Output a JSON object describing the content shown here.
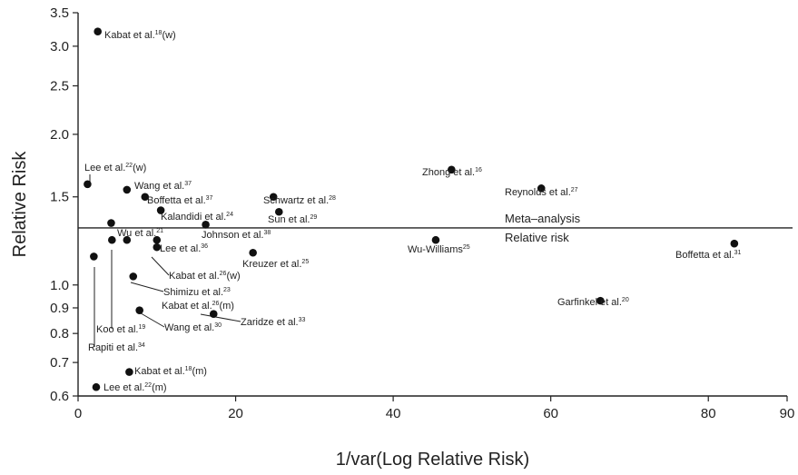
{
  "chart_data": {
    "type": "scatter",
    "title": "",
    "xlabel": "1/var(Log Relative Risk)",
    "ylabel": "Relative Risk",
    "xlim": [
      0,
      90
    ],
    "ylim": [
      0.6,
      3.5
    ],
    "yscale": "log",
    "grid": false,
    "x_ticks": [
      0,
      20,
      40,
      60,
      80,
      90
    ],
    "x_tick_labels": [
      "0",
      "20",
      "40",
      "60",
      "80",
      "90"
    ],
    "y_ticks": [
      0.6,
      0.7,
      0.8,
      0.9,
      1.0,
      1.5,
      2.0,
      2.5,
      3.0,
      3.5
    ],
    "y_tick_labels": [
      "0.6",
      "0.7",
      "0.8",
      "0.9",
      "1.0",
      "1.5",
      "2.0",
      "2.5",
      "3.0",
      "3.5"
    ],
    "reference_line": {
      "y": 1.3,
      "label_above": "Meta–analysis",
      "label_below": "Relative risk"
    },
    "points": [
      {
        "x": 2.5,
        "y": 3.21,
        "name": "Kabat et al.",
        "ref": "18",
        "suffix": "(w)"
      },
      {
        "x": 1.2,
        "y": 1.59,
        "name": "Lee et al.",
        "ref": "22",
        "suffix": "(w)"
      },
      {
        "x": 6.2,
        "y": 1.55,
        "name": "Wang et al.",
        "ref": "37",
        "suffix": ""
      },
      {
        "x": 8.5,
        "y": 1.5,
        "name": "Boffetta et al.",
        "ref": "37",
        "suffix": ""
      },
      {
        "x": 10.5,
        "y": 1.41,
        "name": "Kalandidi et al.",
        "ref": "24",
        "suffix": ""
      },
      {
        "x": 4.2,
        "y": 1.33,
        "name": "Wu et al.",
        "ref": "21",
        "suffix": ""
      },
      {
        "x": 16.2,
        "y": 1.32,
        "name": "Johnson et al.",
        "ref": "38",
        "suffix": ""
      },
      {
        "x": 24.8,
        "y": 1.5,
        "name": "Schwartz et al.",
        "ref": "28",
        "suffix": ""
      },
      {
        "x": 25.5,
        "y": 1.4,
        "name": "Sun et al.",
        "ref": "29",
        "suffix": ""
      },
      {
        "x": 47.4,
        "y": 1.7,
        "name": "Zhong et al.",
        "ref": "16",
        "suffix": ""
      },
      {
        "x": 58.8,
        "y": 1.56,
        "name": "Reynolds et al.",
        "ref": "27",
        "suffix": ""
      },
      {
        "x": 45.4,
        "y": 1.23,
        "name": "Wu-Williams",
        "ref": "25",
        "suffix": ""
      },
      {
        "x": 83.3,
        "y": 1.21,
        "name": "Boffetta et al.",
        "ref": "31",
        "suffix": ""
      },
      {
        "x": 10.0,
        "y": 1.23,
        "name": "Lee et al.",
        "ref": "36",
        "suffix": ""
      },
      {
        "x": 6.2,
        "y": 1.23,
        "name": "Kabat et al.",
        "ref": "26",
        "suffix": "(w)"
      },
      {
        "x": 10.0,
        "y": 1.19,
        "name": "Kreuzer et al.",
        "ref": "25",
        "suffix": ""
      },
      {
        "x": 22.2,
        "y": 1.16,
        "name": "",
        "ref": "",
        "suffix": ""
      },
      {
        "x": 4.3,
        "y": 1.23,
        "name": "Koo et al.",
        "ref": "19",
        "suffix": ""
      },
      {
        "x": 2.0,
        "y": 1.14,
        "name": "Rapiti et al.",
        "ref": "34",
        "suffix": ""
      },
      {
        "x": 7.0,
        "y": 1.04,
        "name": "Shimizu et al.",
        "ref": "23",
        "suffix": ""
      },
      {
        "x": 7.8,
        "y": 0.89,
        "name": "Wang et al.",
        "ref": "30",
        "suffix": ""
      },
      {
        "x": 17.2,
        "y": 0.875,
        "name": "Zaridze et al.",
        "ref": "33",
        "suffix": ""
      },
      {
        "x": 66.3,
        "y": 0.93,
        "name": "Garfinkel et al.",
        "ref": "20",
        "suffix": ""
      },
      {
        "x": 6.5,
        "y": 0.67,
        "name": "Kabat et al.",
        "ref": "18",
        "suffix": "(m)"
      },
      {
        "x": 2.3,
        "y": 0.625,
        "name": "Lee et al.",
        "ref": "22",
        "suffix": "(m)"
      }
    ],
    "extra_labels": [
      {
        "name": "Kabat et al.",
        "ref": "26",
        "suffix": "(m)"
      }
    ]
  }
}
